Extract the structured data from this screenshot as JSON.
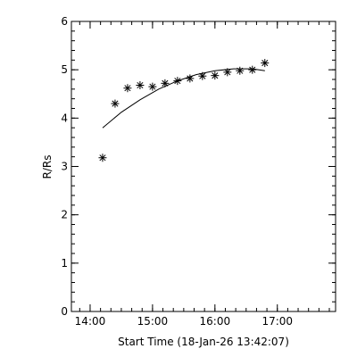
{
  "chart_data": {
    "type": "scatter",
    "xlabel": "Start Time (18-Jan-26 13:42:07)",
    "ylabel": "R/Rs",
    "xlim": [
      "13:42",
      "17:56"
    ],
    "ylim": [
      0,
      6
    ],
    "x_ticks": [
      "14:00",
      "15:00",
      "16:00",
      "17:00"
    ],
    "y_ticks": [
      "0",
      "1",
      "2",
      "3",
      "4",
      "5",
      "6"
    ],
    "grid": false,
    "series": [
      {
        "kind": "points",
        "marker": "asterisk",
        "points": [
          {
            "x": "14:12",
            "y": 3.18
          },
          {
            "x": "14:24",
            "y": 4.3
          },
          {
            "x": "14:36",
            "y": 4.62
          },
          {
            "x": "14:48",
            "y": 4.68
          },
          {
            "x": "15:00",
            "y": 4.65
          },
          {
            "x": "15:12",
            "y": 4.72
          },
          {
            "x": "15:24",
            "y": 4.77
          },
          {
            "x": "15:36",
            "y": 4.82
          },
          {
            "x": "15:48",
            "y": 4.87
          },
          {
            "x": "16:00",
            "y": 4.88
          },
          {
            "x": "16:12",
            "y": 4.95
          },
          {
            "x": "16:24",
            "y": 4.98
          },
          {
            "x": "16:36",
            "y": 5.0
          },
          {
            "x": "16:48",
            "y": 5.14
          }
        ]
      },
      {
        "kind": "fit-line",
        "points": [
          {
            "x": "14:12",
            "y": 3.8
          },
          {
            "x": "14:30",
            "y": 4.12
          },
          {
            "x": "14:48",
            "y": 4.38
          },
          {
            "x": "15:06",
            "y": 4.6
          },
          {
            "x": "15:24",
            "y": 4.77
          },
          {
            "x": "15:42",
            "y": 4.9
          },
          {
            "x": "16:00",
            "y": 4.98
          },
          {
            "x": "16:18",
            "y": 5.02
          },
          {
            "x": "16:36",
            "y": 5.02
          },
          {
            "x": "16:48",
            "y": 4.98
          }
        ]
      }
    ]
  }
}
